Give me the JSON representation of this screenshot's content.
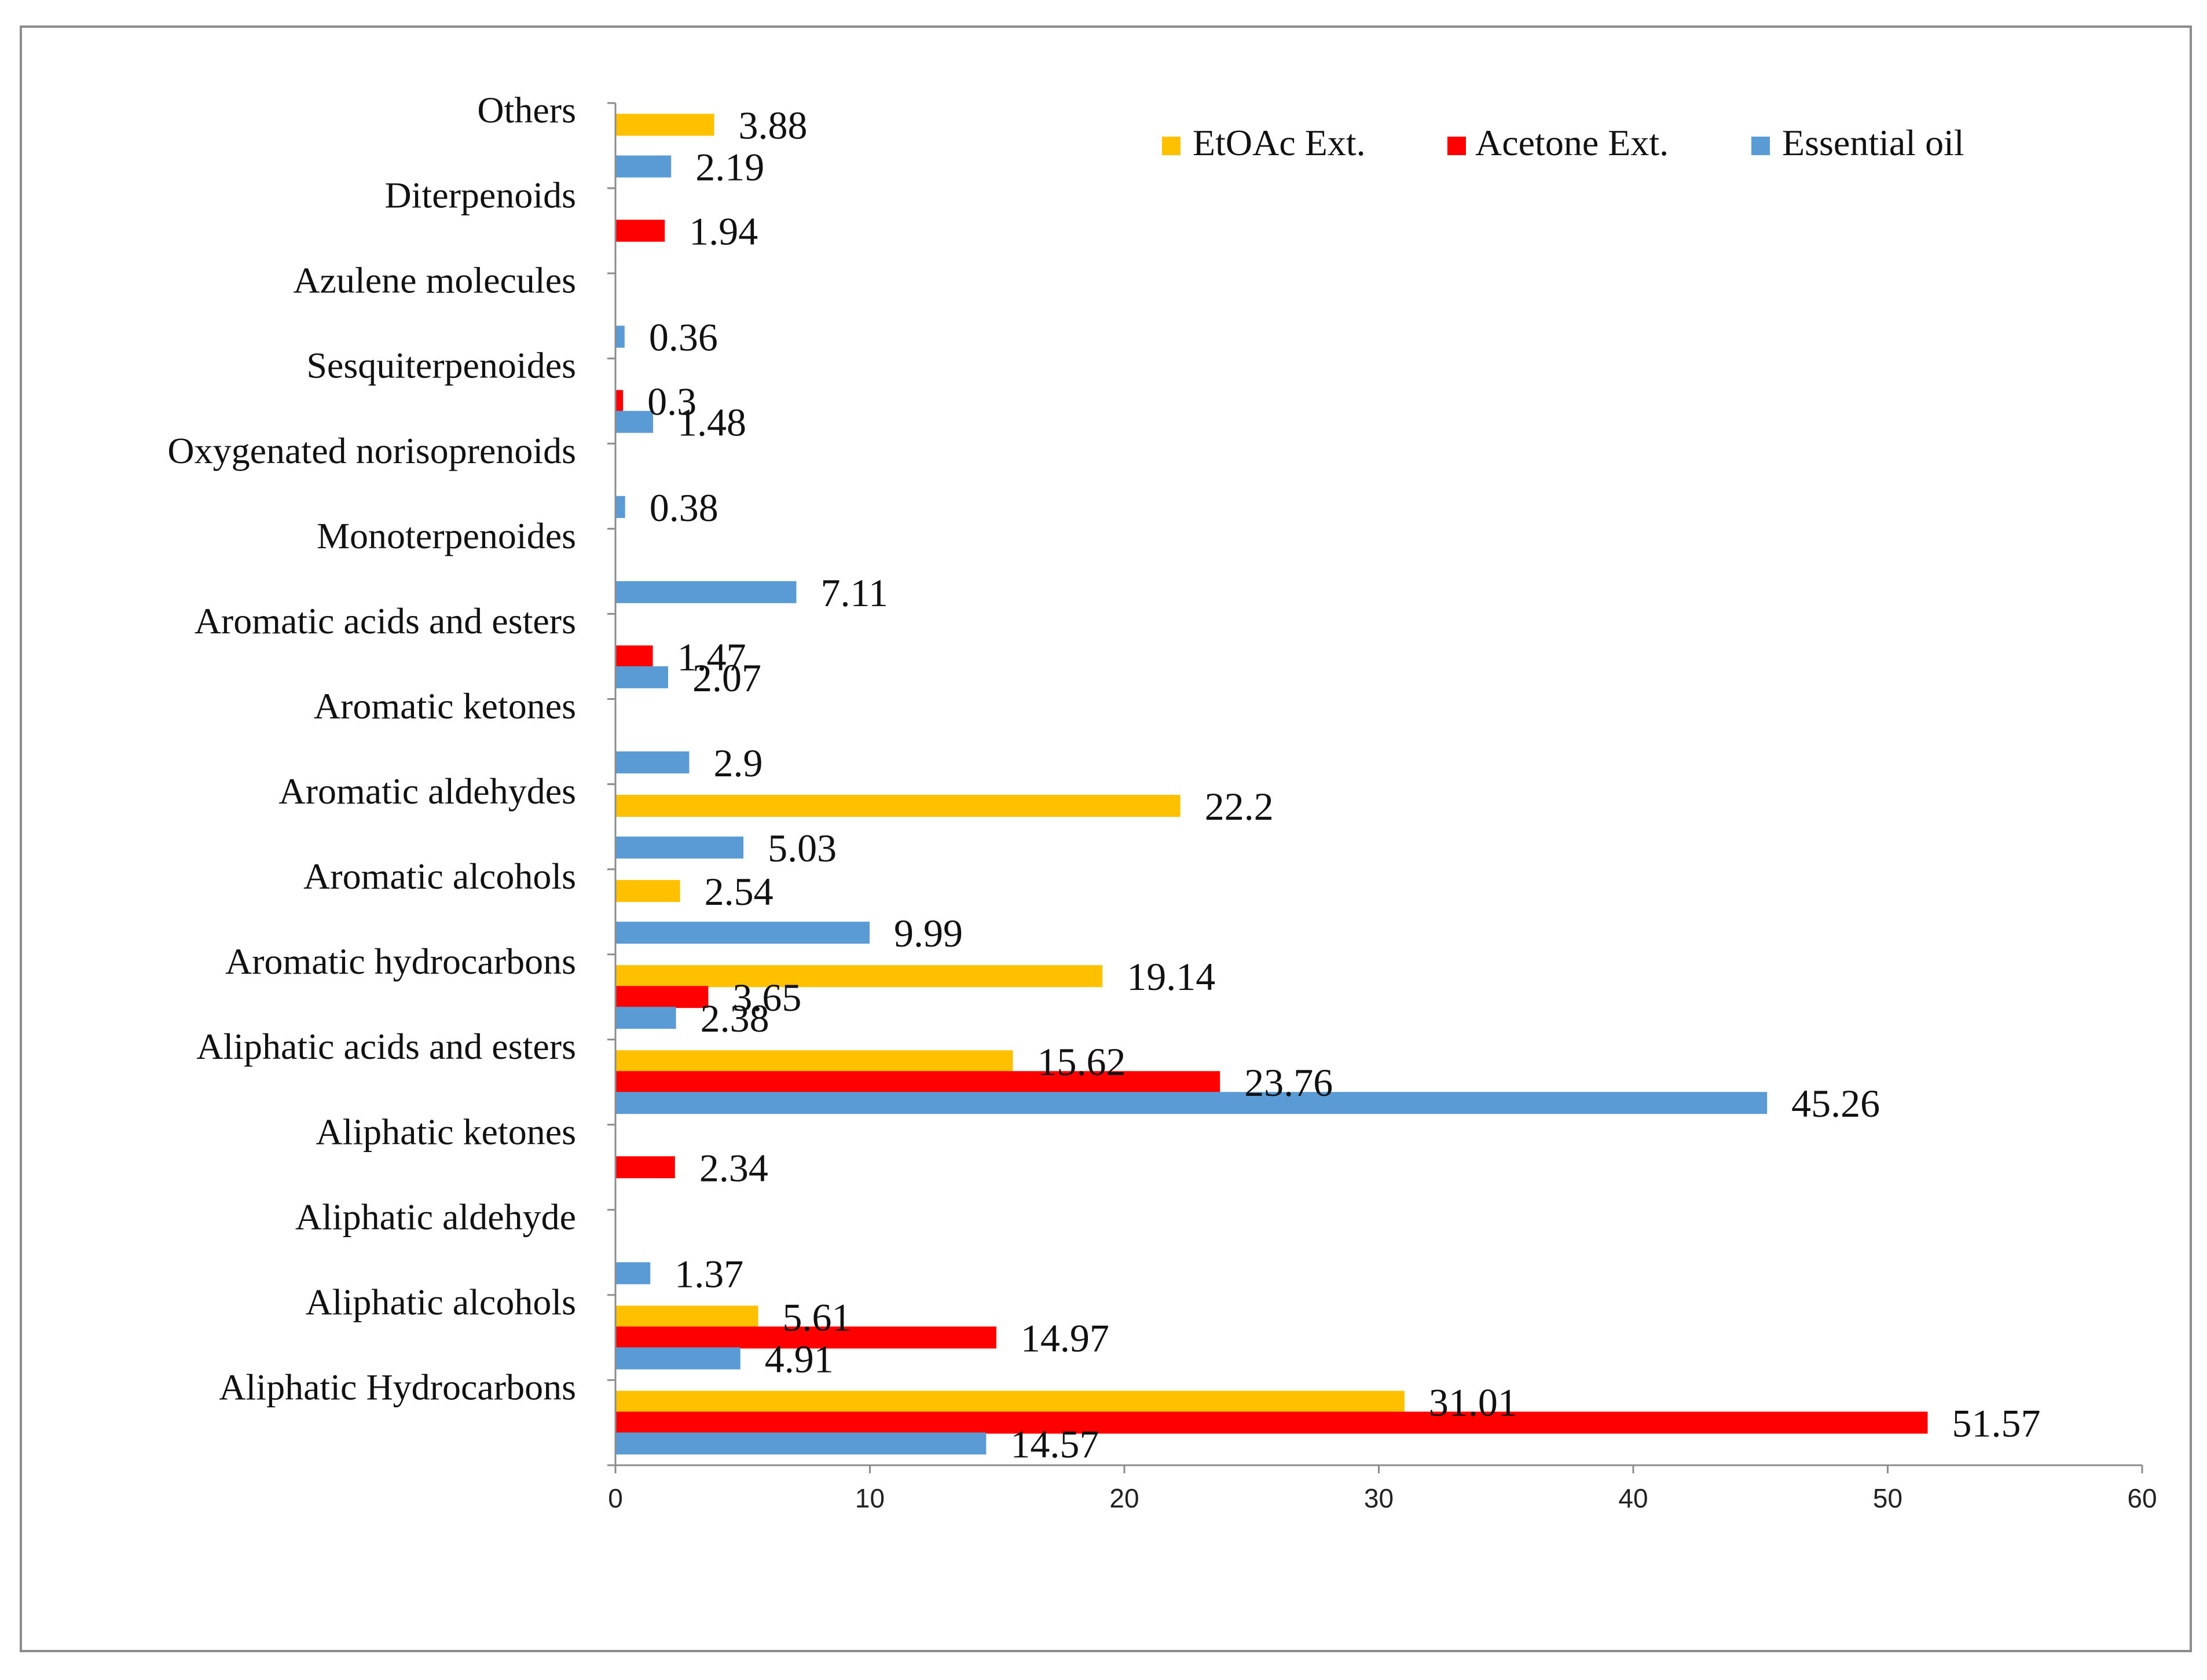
{
  "chart_data": {
    "type": "bar",
    "orientation": "horizontal",
    "title": "",
    "xlabel": "",
    "ylabel": "",
    "xlim": [
      0,
      60
    ],
    "x_ticks": [
      0,
      10,
      20,
      30,
      40,
      50,
      60
    ],
    "legend_position": "top-right",
    "grid": false,
    "categories": [
      "Aliphatic  Hydrocarbons",
      "Aliphatic alcohols",
      "Aliphatic aldehyde",
      "Aliphatic ketones",
      "Aliphatic acids and esters",
      "Aromatic hydrocarbons",
      "Aromatic alcohols",
      "Aromatic aldehydes",
      "Aromatic ketones",
      "Aromatic acids and esters",
      "Monoterpenoides",
      "Oxygenated norisoprenoids",
      "Sesquiterpenoides",
      "Azulene molecules",
      "Diterpenoids",
      "Others"
    ],
    "series": [
      {
        "name": "EtOAc Ext.",
        "color": "#FFC000",
        "values": [
          31.01,
          5.61,
          null,
          null,
          15.62,
          19.14,
          2.54,
          22.2,
          null,
          null,
          null,
          null,
          null,
          null,
          null,
          3.88
        ],
        "labels": [
          "31.01",
          "5.61",
          null,
          null,
          "15.62",
          "19.14",
          "2.54",
          "22.2",
          null,
          null,
          null,
          null,
          null,
          null,
          null,
          "3.88"
        ]
      },
      {
        "name": "Acetone Ext.",
        "color": "#FF0000",
        "values": [
          51.57,
          14.97,
          null,
          2.34,
          23.76,
          3.65,
          null,
          null,
          null,
          1.47,
          null,
          null,
          0.3,
          null,
          1.94,
          null
        ],
        "labels": [
          "51.57",
          "14.97",
          null,
          "2.34",
          "23.76",
          "3.65",
          null,
          null,
          null,
          "1.47",
          null,
          null,
          "0.3",
          null,
          "1.94",
          null
        ]
      },
      {
        "name": "Essential oil",
        "color": "#5B9BD5",
        "values": [
          14.57,
          4.91,
          1.37,
          null,
          45.26,
          2.38,
          9.99,
          5.03,
          2.9,
          2.07,
          7.11,
          0.38,
          1.48,
          0.36,
          null,
          2.19
        ],
        "labels": [
          "14.57",
          "4.91",
          "1.37",
          null,
          "45.26",
          "2.38",
          "9.99",
          "5.03",
          "2.9",
          "2.07",
          "7.11",
          "0.38",
          "1.48",
          "0.36",
          null,
          "2.19"
        ]
      }
    ]
  }
}
